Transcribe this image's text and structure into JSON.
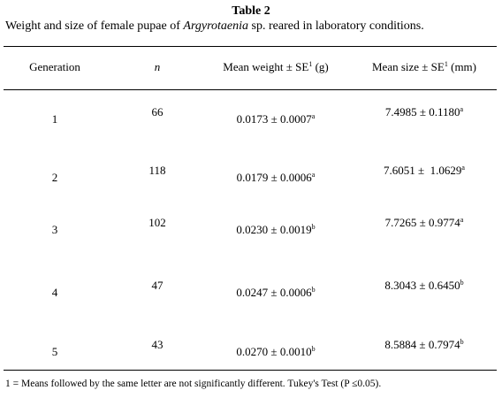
{
  "title": "Table 2",
  "caption": {
    "before": "Weight and size of female pupae of ",
    "italic": "Argyrotaenia",
    "after": " sp. reared in laboratory conditions."
  },
  "table": {
    "header": [
      {
        "text": "Generation"
      },
      {
        "text": "n"
      },
      {
        "text": "Mean weight ± SE",
        "sup": "1",
        "after": " (g)"
      },
      {
        "text": "Mean size ± SE",
        "sup": "1",
        "after": " (mm)"
      }
    ],
    "rows": [
      [
        {
          "text": "1"
        },
        {
          "text": "66"
        },
        {
          "text": "0.0173 ± 0.0007",
          "sup": "a"
        },
        {
          "text": "7.4985 ± 0.1180",
          "sup": "a"
        }
      ],
      [
        {
          "text": "2"
        },
        {
          "text": "118"
        },
        {
          "text": "0.0179 ± 0.0006",
          "sup": "a"
        },
        {
          "text": "7.6051 ±  1.0629",
          "sup": "a"
        }
      ],
      [
        {
          "text": "3"
        },
        {
          "text": "102"
        },
        {
          "text": "0.0230 ± 0.0019",
          "sup": "b"
        },
        {
          "text": "7.7265 ± 0.9774",
          "sup": "a"
        }
      ],
      [
        {
          "text": "4"
        },
        {
          "text": "47"
        },
        {
          "text": "0.0247 ± 0.0006",
          "sup": "b"
        },
        {
          "text": "8.3043 ± 0.6450",
          "sup": "b"
        }
      ],
      [
        {
          "text": "5"
        },
        {
          "text": "43"
        },
        {
          "text": "0.0270 ± 0.0010",
          "sup": "b"
        },
        {
          "text": "8.5884 ± 0.7974",
          "sup": "b"
        }
      ]
    ]
  },
  "footnote": "1 = Means followed by the same letter are not significantly different. Tukey's Test (P ≤0.05)."
}
